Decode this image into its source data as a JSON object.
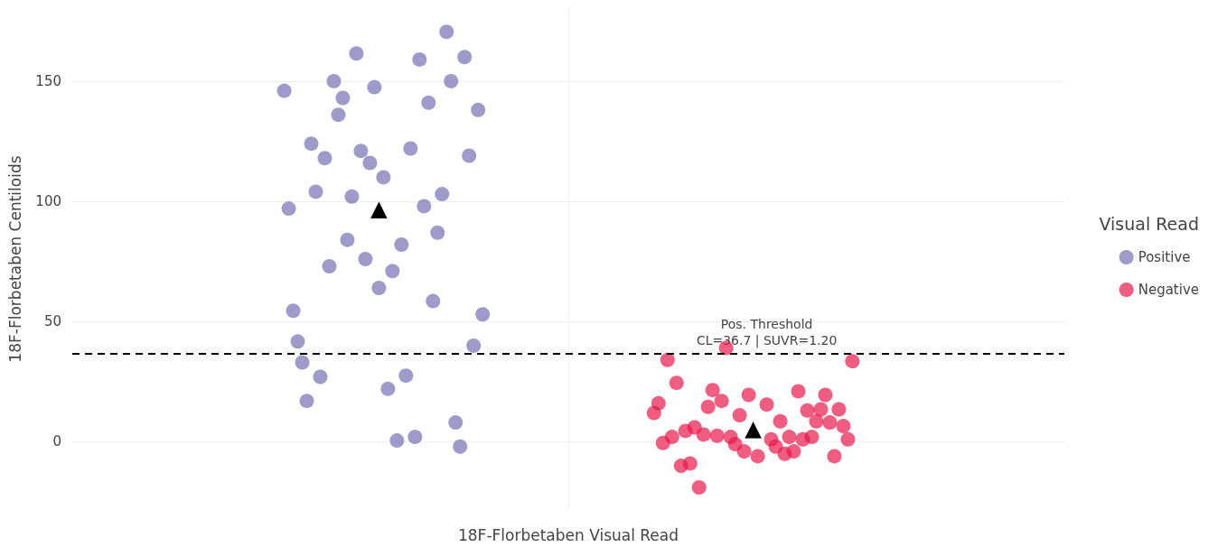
{
  "chart_data": {
    "type": "scatter",
    "xlabel": "18F-Florbetaben Visual Read",
    "ylabel": "18F-Florbetaben Centiloids",
    "legend_title": "Visual Read",
    "legend": "right",
    "grid": true,
    "marker": "circle",
    "categories": [
      null,
      null,
      null,
      null,
      null,
      null,
      null,
      null,
      null,
      null,
      null,
      null,
      null,
      null,
      null,
      null,
      null,
      null,
      null,
      null,
      null,
      null,
      null,
      null,
      null,
      null,
      null,
      null,
      null,
      null,
      null,
      null,
      null,
      null,
      null,
      null,
      null,
      null,
      null,
      null,
      null,
      null,
      null,
      null,
      null,
      null,
      null,
      null,
      null,
      null,
      null,
      null,
      null,
      null,
      null,
      null,
      null,
      null,
      null,
      null,
      null,
      null,
      null,
      null,
      null,
      null,
      null,
      null,
      null,
      null,
      null,
      null,
      null,
      null,
      null,
      null,
      null,
      null,
      null,
      null,
      null,
      null,
      null,
      null,
      null,
      null,
      null,
      null,
      null,
      null,
      null,
      null,
      null,
      null,
      null,
      null,
      null,
      null,
      null,
      null,
      null,
      null,
      null,
      null,
      null,
      null,
      null,
      null,
      null,
      null,
      null,
      null,
      null,
      null,
      null,
      null,
      null,
      null,
      null,
      null,
      null,
      null,
      null,
      null,
      null,
      null,
      null,
      null,
      null,
      null,
      null,
      null,
      null,
      null,
      null,
      null,
      null,
      null,
      null,
      null,
      null,
      null,
      null,
      null,
      null,
      null,
      null,
      null,
      null,
      null,
      null,
      null,
      null,
      null,
      null,
      null,
      null,
      null,
      null,
      null,
      null,
      null,
      null,
      null,
      null,
      null,
      null,
      null,
      null,
      null,
      null,
      null,
      null,
      null,
      null,
      null,
      null,
      null,
      null,
      null,
      null,
      null,
      null,
      null,
      null,
      null,
      null,
      null,
      null,
      null,
      null,
      null,
      null,
      null,
      null,
      null,
      null,
      null,
      null,
      null,
      null,
      null,
      null,
      null,
      null,
      null,
      null,
      null,
      null,
      null,
      null,
      null,
      null,
      null,
      null,
      null,
      null,
      null,
      null,
      null,
      null
    ],
    "ylim": [
      -28,
      180
    ],
    "yticks": [
      0,
      50,
      100,
      150
    ],
    "ref_lines": [
      {
        "axis": "y",
        "value": 36.7,
        "label": "Pos. Threshold\nCL=36.7 | SUVR=1.20",
        "color": "#000000",
        "line_style": "dashed"
      }
    ],
    "series": [
      {
        "name": "Positive",
        "color": "#7570b3",
        "values": [
          null,
          null,
          null,
          null,
          null,
          null,
          null,
          null,
          null,
          null,
          null,
          null,
          null,
          null,
          null,
          null,
          null,
          null,
          null,
          null,
          null,
          null,
          null,
          null,
          null,
          null,
          null,
          null,
          null,
          null,
          null,
          null,
          null,
          null,
          null,
          null,
          null,
          null,
          null,
          null,
          null,
          null,
          null,
          null,
          null,
          null,
          null,
          146,
          97,
          54.5,
          41.7,
          33,
          17,
          124,
          104,
          27,
          118,
          73,
          150,
          136,
          143,
          84,
          102,
          161.5,
          121,
          76,
          116,
          147.5,
          64,
          110,
          22,
          71,
          0.5,
          82,
          27.5,
          122,
          2,
          159,
          98,
          141,
          58.5,
          87,
          103,
          170.5,
          150,
          8,
          -2,
          160,
          119,
          40,
          138,
          53,
          null,
          null,
          null,
          null,
          null,
          null,
          null,
          null,
          null,
          null,
          null,
          null,
          null,
          null,
          null,
          null,
          null,
          null,
          null,
          null,
          null,
          null,
          null,
          null,
          null,
          null,
          null,
          null,
          null,
          null,
          null,
          null,
          null,
          null,
          null,
          null,
          null,
          null,
          null,
          null,
          null,
          null,
          null,
          null,
          null,
          null,
          null,
          null,
          null,
          null,
          null,
          null,
          null,
          null,
          null,
          null,
          null,
          null,
          null,
          null,
          null,
          null,
          null,
          null,
          null,
          null,
          null,
          null,
          null,
          null,
          null,
          null,
          null,
          null,
          null,
          null,
          null,
          null,
          null,
          null,
          null,
          null,
          null,
          null,
          null,
          null,
          null,
          null,
          null,
          null,
          null,
          null,
          null,
          null,
          null,
          null,
          null,
          null,
          null,
          null,
          null,
          null,
          null,
          null,
          null,
          null,
          null,
          null,
          null,
          null,
          null,
          null,
          null,
          null,
          null,
          null,
          null,
          null,
          null,
          null,
          null,
          null,
          null,
          null,
          null,
          null,
          null,
          null,
          null
        ]
      },
      {
        "name": "Negative",
        "color": "#e8184c",
        "values": [
          null,
          null,
          null,
          null,
          null,
          null,
          null,
          null,
          null,
          null,
          null,
          null,
          null,
          null,
          null,
          null,
          null,
          null,
          null,
          null,
          null,
          null,
          null,
          null,
          null,
          null,
          null,
          null,
          null,
          null,
          null,
          null,
          null,
          null,
          null,
          null,
          null,
          null,
          null,
          null,
          null,
          null,
          null,
          null,
          null,
          null,
          null,
          null,
          null,
          null,
          null,
          null,
          null,
          null,
          null,
          null,
          null,
          null,
          null,
          null,
          null,
          null,
          null,
          null,
          null,
          null,
          null,
          null,
          null,
          null,
          null,
          null,
          null,
          null,
          null,
          null,
          null,
          null,
          null,
          null,
          null,
          null,
          null,
          null,
          null,
          null,
          null,
          null,
          null,
          null,
          null,
          null,
          null,
          null,
          null,
          null,
          null,
          null,
          null,
          null,
          null,
          null,
          null,
          null,
          null,
          null,
          null,
          null,
          null,
          null,
          null,
          null,
          null,
          null,
          null,
          null,
          null,
          null,
          null,
          null,
          null,
          null,
          null,
          null,
          null,
          null,
          null,
          null,
          null,
          12,
          16,
          -0.5,
          34,
          2,
          24.5,
          -10,
          4.5,
          -9,
          6,
          -19,
          3,
          14.5,
          21.5,
          2.5,
          17,
          39,
          2,
          -1,
          11,
          -4,
          19.5,
          null,
          -6,
          null,
          15.5,
          1,
          -2,
          8.5,
          -5,
          2,
          -4,
          21,
          1,
          13,
          2,
          8.5,
          13.5,
          19.5,
          8,
          -6,
          13.5,
          6.5,
          1,
          33.5,
          null,
          null,
          null,
          null,
          null,
          null,
          null,
          null,
          null,
          null,
          null,
          null,
          null,
          null,
          null,
          null,
          null,
          null,
          null,
          null,
          null,
          null,
          null,
          null,
          null,
          null,
          null,
          null,
          null,
          null,
          null,
          null,
          null,
          null,
          null,
          null,
          null,
          null,
          null,
          null,
          null,
          null,
          null,
          null,
          null,
          null,
          null
        ]
      },
      {
        "color": "#000000",
        "marker": "triangle",
        "values": [
          null,
          null,
          null,
          null,
          null,
          null,
          null,
          null,
          null,
          null,
          null,
          null,
          null,
          null,
          null,
          null,
          null,
          null,
          null,
          null,
          null,
          null,
          null,
          null,
          null,
          null,
          null,
          null,
          null,
          null,
          null,
          null,
          null,
          null,
          null,
          null,
          null,
          null,
          null,
          null,
          null,
          null,
          null,
          null,
          null,
          null,
          null,
          null,
          null,
          null,
          null,
          null,
          null,
          null,
          null,
          null,
          null,
          null,
          null,
          null,
          null,
          null,
          null,
          null,
          null,
          null,
          null,
          null,
          96.5,
          null,
          null,
          null,
          null,
          null,
          null,
          null,
          null,
          null,
          null,
          null,
          null,
          null,
          null,
          null,
          null,
          null,
          null,
          null,
          null,
          null,
          null,
          null,
          null,
          null,
          null,
          null,
          null,
          null,
          null,
          null,
          null,
          null,
          null,
          null,
          null,
          null,
          null,
          null,
          null,
          null,
          null,
          null,
          null,
          null,
          null,
          null,
          null,
          null,
          null,
          null,
          null,
          null,
          null,
          null,
          null,
          null,
          null,
          null,
          null,
          null,
          null,
          null,
          null,
          null,
          null,
          null,
          null,
          null,
          null,
          null,
          null,
          null,
          null,
          null,
          null,
          null,
          null,
          null,
          null,
          null,
          null,
          5,
          null,
          null,
          null,
          null,
          null,
          null,
          null,
          null,
          null,
          null,
          null,
          null,
          null,
          null,
          null,
          null,
          null,
          null,
          null,
          null,
          null,
          null,
          null,
          null,
          null,
          null,
          null,
          null,
          null,
          null,
          null,
          null,
          null,
          null,
          null,
          null,
          null,
          null,
          null,
          null,
          null,
          null,
          null,
          null,
          null,
          null,
          null,
          null,
          null,
          null,
          null,
          null,
          null,
          null,
          null,
          null,
          null,
          null,
          null,
          null,
          null,
          null,
          null,
          null,
          null,
          null,
          null,
          null,
          null
        ]
      }
    ]
  }
}
